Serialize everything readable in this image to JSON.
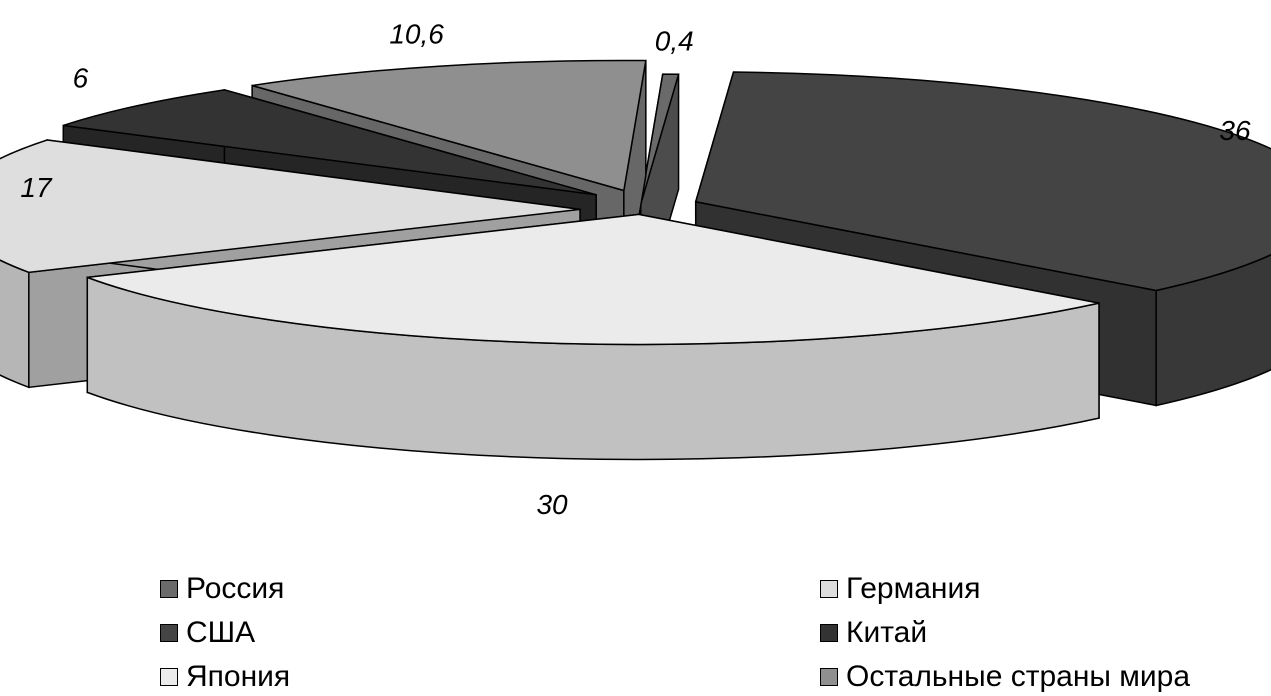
{
  "chart_data": {
    "type": "pie",
    "style": "3d-exploded",
    "title": "",
    "categories": [
      "Россия",
      "США",
      "Япония",
      "Германия",
      "Китай",
      "Остальные страны мира"
    ],
    "values": [
      0.4,
      36,
      30,
      17,
      6,
      10.6
    ],
    "labels": [
      "0,4",
      "36",
      "30",
      "17",
      "6",
      "10,6"
    ],
    "colors": {
      "Россия": "#6a6a6a",
      "США": "#444444",
      "Япония": "#ebebeb",
      "Германия": "#dedede",
      "Китай": "#333333",
      "Остальные страны мира": "#8f8f8f"
    },
    "legend": {
      "position": "bottom",
      "entries": [
        "Россия",
        "Германия",
        "США",
        "Китай",
        "Япония",
        "Остальные страны мира"
      ]
    }
  }
}
